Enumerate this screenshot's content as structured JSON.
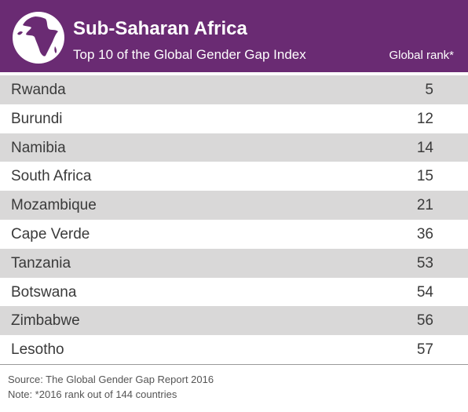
{
  "header": {
    "title": "Sub-Saharan Africa",
    "subtitle": "Top 10 of the Global Gender Gap Index",
    "column_label": "Global rank*",
    "icon": "globe-icon",
    "colors": {
      "header_bg": "#6a2b73",
      "row_shade": "#d9d8d8"
    }
  },
  "chart_data": {
    "type": "table",
    "title": "Sub-Saharan Africa",
    "subtitle": "Top 10 of the Global Gender Gap Index",
    "columns": [
      "",
      "Global rank*"
    ],
    "rows": [
      {
        "country": "Rwanda",
        "rank": 5
      },
      {
        "country": "Burundi",
        "rank": 12
      },
      {
        "country": "Namibia",
        "rank": 14
      },
      {
        "country": "South Africa",
        "rank": 15
      },
      {
        "country": "Mozambique",
        "rank": 21
      },
      {
        "country": "Cape Verde",
        "rank": 36
      },
      {
        "country": "Tanzania",
        "rank": 53
      },
      {
        "country": "Botswana",
        "rank": 54
      },
      {
        "country": "Zimbabwe",
        "rank": 56
      },
      {
        "country": "Lesotho",
        "rank": 57
      }
    ]
  },
  "footer": {
    "source": "Source: The Global Gender Gap Report 2016",
    "note": "Note: *2016 rank out of 144 countries"
  }
}
